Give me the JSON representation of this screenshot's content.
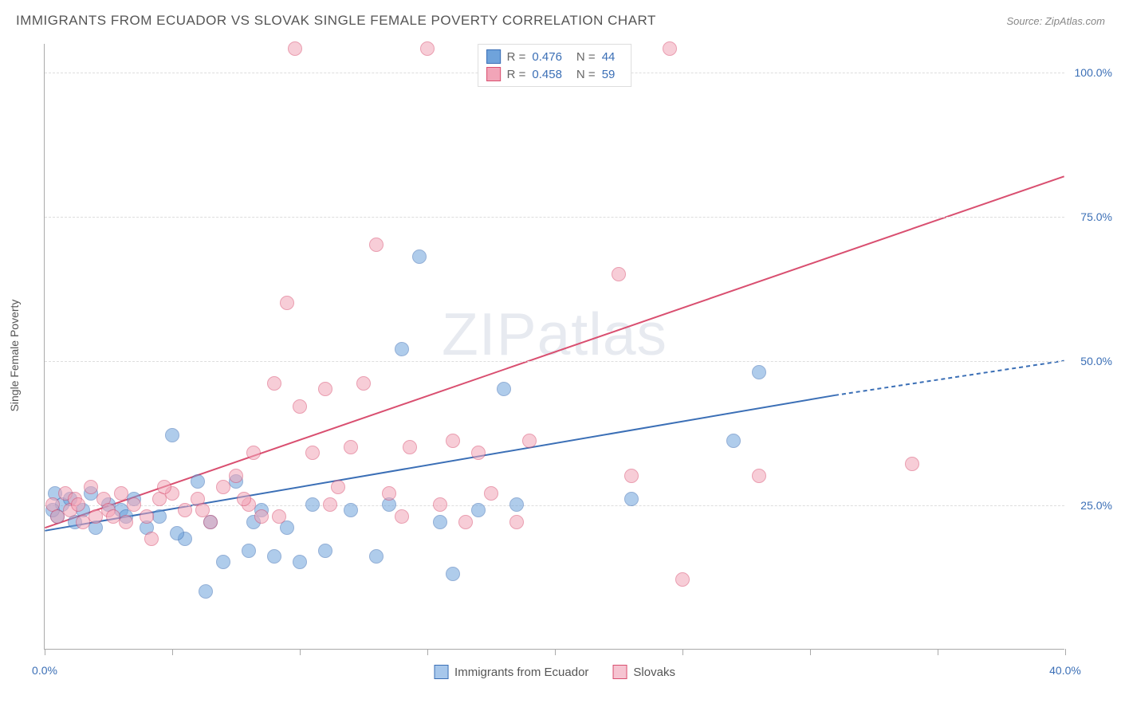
{
  "title": "IMMIGRANTS FROM ECUADOR VS SLOVAK SINGLE FEMALE POVERTY CORRELATION CHART",
  "source_label": "Source: ZipAtlas.com",
  "watermark": "ZIPatlas",
  "y_axis_title": "Single Female Poverty",
  "chart": {
    "type": "scatter",
    "xlim": [
      0,
      40
    ],
    "ylim": [
      0,
      105
    ],
    "y_ticks": [
      25,
      50,
      75,
      100
    ],
    "y_tick_labels": [
      "25.0%",
      "50.0%",
      "75.0%",
      "100.0%"
    ],
    "x_ticks": [
      0,
      5,
      10,
      15,
      20,
      25,
      30,
      35,
      40
    ],
    "x_visible_labels": {
      "0": "0.0%",
      "40": "40.0%"
    },
    "background_color": "#ffffff",
    "grid_dash_color": "#dddddd",
    "axis_color": "#aaaaaa",
    "label_color": "#3b6fb6",
    "point_radius": 9,
    "point_opacity": 0.55,
    "series": [
      {
        "name": "Immigrants from Ecuador",
        "color": "#6fa3db",
        "stroke": "#3b6fb6",
        "stats": {
          "R": "0.476",
          "N": "44"
        },
        "trend": {
          "x1": 0,
          "y1": 20.5,
          "x2": 31,
          "y2": 44,
          "dashed_extend_x": 40,
          "dashed_extend_y": 50,
          "width": 2
        },
        "points": [
          [
            0.5,
            23
          ],
          [
            0.7,
            25
          ],
          [
            1.0,
            26
          ],
          [
            1.2,
            22
          ],
          [
            1.5,
            24
          ],
          [
            1.8,
            27
          ],
          [
            2.0,
            21
          ],
          [
            3.0,
            24
          ],
          [
            3.5,
            26
          ],
          [
            4.0,
            21
          ],
          [
            4.5,
            23
          ],
          [
            5.0,
            37
          ],
          [
            5.5,
            19
          ],
          [
            6.0,
            29
          ],
          [
            6.3,
            10
          ],
          [
            6.5,
            22
          ],
          [
            7.0,
            15
          ],
          [
            7.5,
            29
          ],
          [
            8.0,
            17
          ],
          [
            8.2,
            22
          ],
          [
            8.5,
            24
          ],
          [
            9.0,
            16
          ],
          [
            9.5,
            21
          ],
          [
            10.0,
            15
          ],
          [
            10.5,
            25
          ],
          [
            11.0,
            17
          ],
          [
            12.0,
            24
          ],
          [
            13.0,
            16
          ],
          [
            13.5,
            25
          ],
          [
            14.0,
            52
          ],
          [
            14.7,
            68
          ],
          [
            15.5,
            22
          ],
          [
            16.0,
            13
          ],
          [
            17.0,
            24
          ],
          [
            18.0,
            45
          ],
          [
            18.5,
            25
          ],
          [
            23.0,
            26
          ],
          [
            27.0,
            36
          ],
          [
            28.0,
            48
          ],
          [
            0.3,
            24
          ],
          [
            0.4,
            27
          ],
          [
            2.5,
            25
          ],
          [
            3.2,
            23
          ],
          [
            5.2,
            20
          ]
        ]
      },
      {
        "name": "Slovaks",
        "color": "#f2a5b8",
        "stroke": "#d94f70",
        "stats": {
          "R": "0.458",
          "N": "59"
        },
        "trend": {
          "x1": 0,
          "y1": 21,
          "x2": 40,
          "y2": 82,
          "width": 2
        },
        "points": [
          [
            0.3,
            25
          ],
          [
            0.5,
            23
          ],
          [
            0.8,
            27
          ],
          [
            1.0,
            24
          ],
          [
            1.2,
            26
          ],
          [
            1.5,
            22
          ],
          [
            1.8,
            28
          ],
          [
            2.0,
            23
          ],
          [
            2.3,
            26
          ],
          [
            2.5,
            24
          ],
          [
            3.0,
            27
          ],
          [
            3.2,
            22
          ],
          [
            3.5,
            25
          ],
          [
            4.0,
            23
          ],
          [
            4.2,
            19
          ],
          [
            4.5,
            26
          ],
          [
            5.0,
            27
          ],
          [
            5.5,
            24
          ],
          [
            6.0,
            26
          ],
          [
            6.5,
            22
          ],
          [
            7.0,
            28
          ],
          [
            7.5,
            30
          ],
          [
            8.0,
            25
          ],
          [
            8.2,
            34
          ],
          [
            8.5,
            23
          ],
          [
            9.0,
            46
          ],
          [
            9.5,
            60
          ],
          [
            9.8,
            104
          ],
          [
            10.0,
            42
          ],
          [
            10.5,
            34
          ],
          [
            11.0,
            45
          ],
          [
            11.5,
            28
          ],
          [
            12.0,
            35
          ],
          [
            12.5,
            46
          ],
          [
            13.0,
            70
          ],
          [
            13.5,
            27
          ],
          [
            14.0,
            23
          ],
          [
            14.3,
            35
          ],
          [
            15.0,
            104
          ],
          [
            15.5,
            25
          ],
          [
            16.0,
            36
          ],
          [
            16.5,
            22
          ],
          [
            17.0,
            34
          ],
          [
            17.5,
            27
          ],
          [
            18.5,
            22
          ],
          [
            19.0,
            36
          ],
          [
            22.5,
            65
          ],
          [
            23.0,
            30
          ],
          [
            24.5,
            104
          ],
          [
            25.0,
            12
          ],
          [
            28.0,
            30
          ],
          [
            34.0,
            32
          ],
          [
            1.3,
            25
          ],
          [
            2.7,
            23
          ],
          [
            4.7,
            28
          ],
          [
            6.2,
            24
          ],
          [
            7.8,
            26
          ],
          [
            9.2,
            23
          ],
          [
            11.2,
            25
          ]
        ]
      }
    ]
  },
  "legend_top": {
    "r_label": "R =",
    "n_label": "N ="
  },
  "legend_bottom": [
    {
      "label": "Immigrants from Ecuador",
      "fill": "#a7c7eb",
      "stroke": "#3b6fb6"
    },
    {
      "label": "Slovaks",
      "fill": "#f6c4d1",
      "stroke": "#d94f70"
    }
  ]
}
